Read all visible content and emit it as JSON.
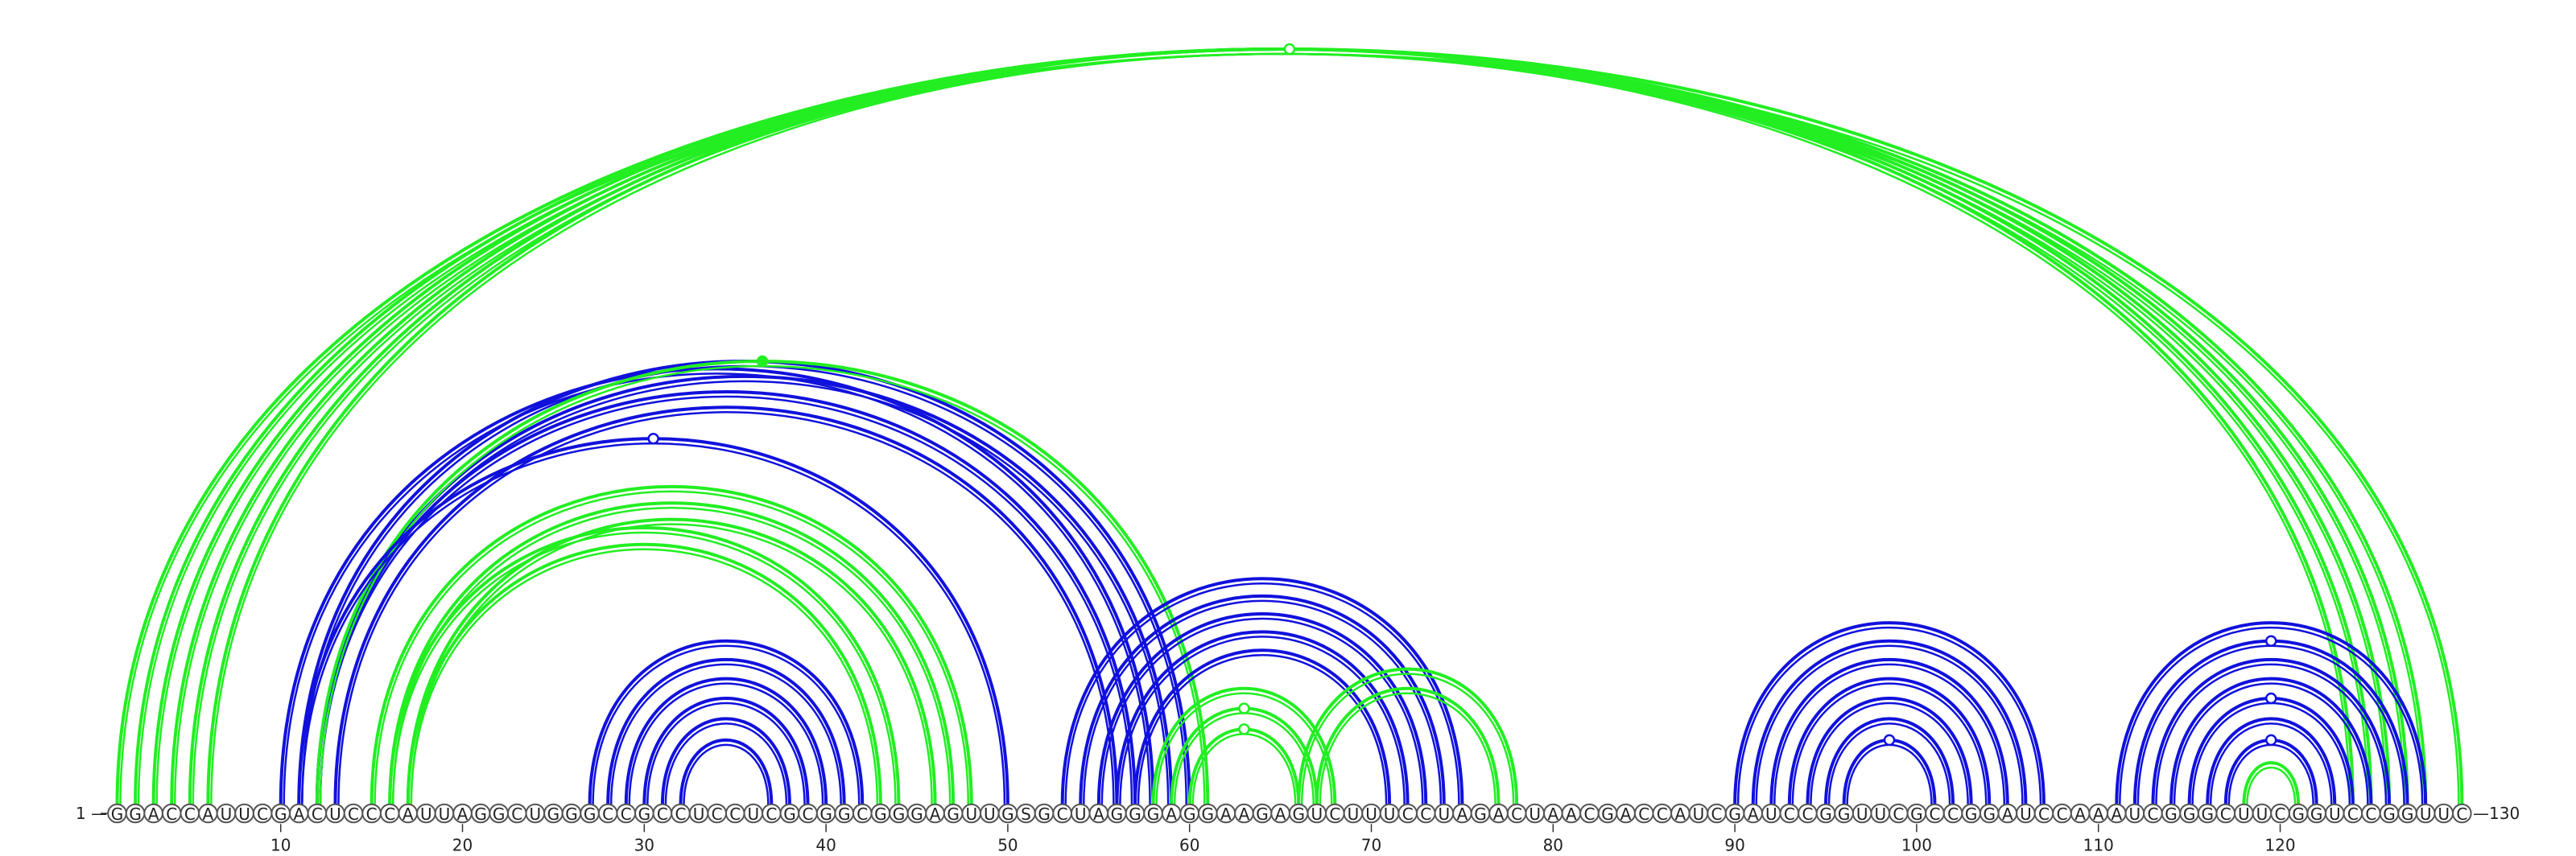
{
  "sequence": "GGACCAUUCGACUCCCAUUAGGCUGGGCCGCCUCCUCGCGGCGGGAGUUGSGCUAGGGAGGAAGAGUCUUUCCUAGACUAACGACCAUCGAUCCGGUUCGCCGGAUCCAAAUCGGGCUUCGGUCCGGUUC",
  "start_label": "1 —",
  "end_label": "—130",
  "ticks": [
    "10",
    "20",
    "30",
    "40",
    "50",
    "60",
    "70",
    "80",
    "90",
    "100",
    "110",
    "120"
  ],
  "colors": {
    "green": "#22ee22",
    "blue": "#1111dd"
  },
  "arc_groups": [
    {
      "color": "green",
      "pairs": [
        [
          1,
          130
        ],
        [
          2,
          128
        ],
        [
          3,
          127
        ],
        [
          4,
          126
        ],
        [
          5,
          125
        ],
        [
          6,
          124
        ]
      ]
    },
    {
      "color": "green",
      "pairs": [
        [
          15,
          48
        ],
        [
          16,
          47
        ],
        [
          17,
          46
        ]
      ]
    },
    {
      "color": "green",
      "pairs": [
        [
          16,
          44
        ],
        [
          17,
          43
        ]
      ]
    },
    {
      "color": "blue",
      "pairs": [
        [
          10,
          58
        ],
        [
          12,
          57
        ],
        [
          13,
          56
        ]
      ]
    },
    {
      "color": "blue",
      "pairs": [
        [
          11,
          60
        ],
        [
          12,
          59
        ]
      ]
    },
    {
      "color": "green",
      "pairs": [
        [
          12,
          61
        ]
      ]
    },
    {
      "color": "blue",
      "pairs": [
        [
          11,
          50
        ]
      ]
    },
    {
      "color": "blue",
      "pairs": [
        [
          27,
          42
        ],
        [
          28,
          41
        ],
        [
          29,
          40
        ],
        [
          30,
          39
        ],
        [
          31,
          38
        ],
        [
          32,
          37
        ]
      ]
    },
    {
      "color": "blue",
      "pairs": [
        [
          53,
          75
        ],
        [
          54,
          74
        ],
        [
          55,
          73
        ],
        [
          56,
          72
        ],
        [
          57,
          71
        ]
      ]
    },
    {
      "color": "green",
      "pairs": [
        [
          58,
          68
        ],
        [
          59,
          67
        ],
        [
          60,
          66
        ]
      ]
    },
    {
      "color": "green",
      "pairs": [
        [
          66,
          78
        ],
        [
          67,
          77
        ]
      ]
    },
    {
      "color": "blue",
      "pairs": [
        [
          90,
          107
        ],
        [
          91,
          106
        ],
        [
          92,
          105
        ],
        [
          93,
          104
        ],
        [
          94,
          103
        ],
        [
          95,
          102
        ],
        [
          96,
          101
        ]
      ]
    },
    {
      "color": "blue",
      "pairs": [
        [
          111,
          128
        ],
        [
          112,
          127
        ],
        [
          113,
          126
        ],
        [
          114,
          125
        ],
        [
          115,
          124
        ],
        [
          116,
          123
        ],
        [
          117,
          122
        ]
      ]
    },
    {
      "color": "green",
      "pairs": [
        [
          118,
          121
        ]
      ]
    }
  ],
  "markers": [
    {
      "pair": [
        1,
        130
      ],
      "color": "green",
      "filled": false
    },
    {
      "pair": [
        12,
        61
      ],
      "color": "green",
      "filled": true
    },
    {
      "pair": [
        11,
        50
      ],
      "color": "blue",
      "filled": false
    },
    {
      "pair": [
        59,
        67
      ],
      "color": "green",
      "filled": false
    },
    {
      "pair": [
        60,
        66
      ],
      "color": "green",
      "filled": false
    },
    {
      "pair": [
        96,
        101
      ],
      "color": "blue",
      "filled": false
    },
    {
      "pair": [
        112,
        127
      ],
      "color": "blue",
      "filled": false
    },
    {
      "pair": [
        115,
        124
      ],
      "color": "blue",
      "filled": false
    },
    {
      "pair": [
        117,
        122
      ],
      "color": "blue",
      "filled": false
    }
  ]
}
